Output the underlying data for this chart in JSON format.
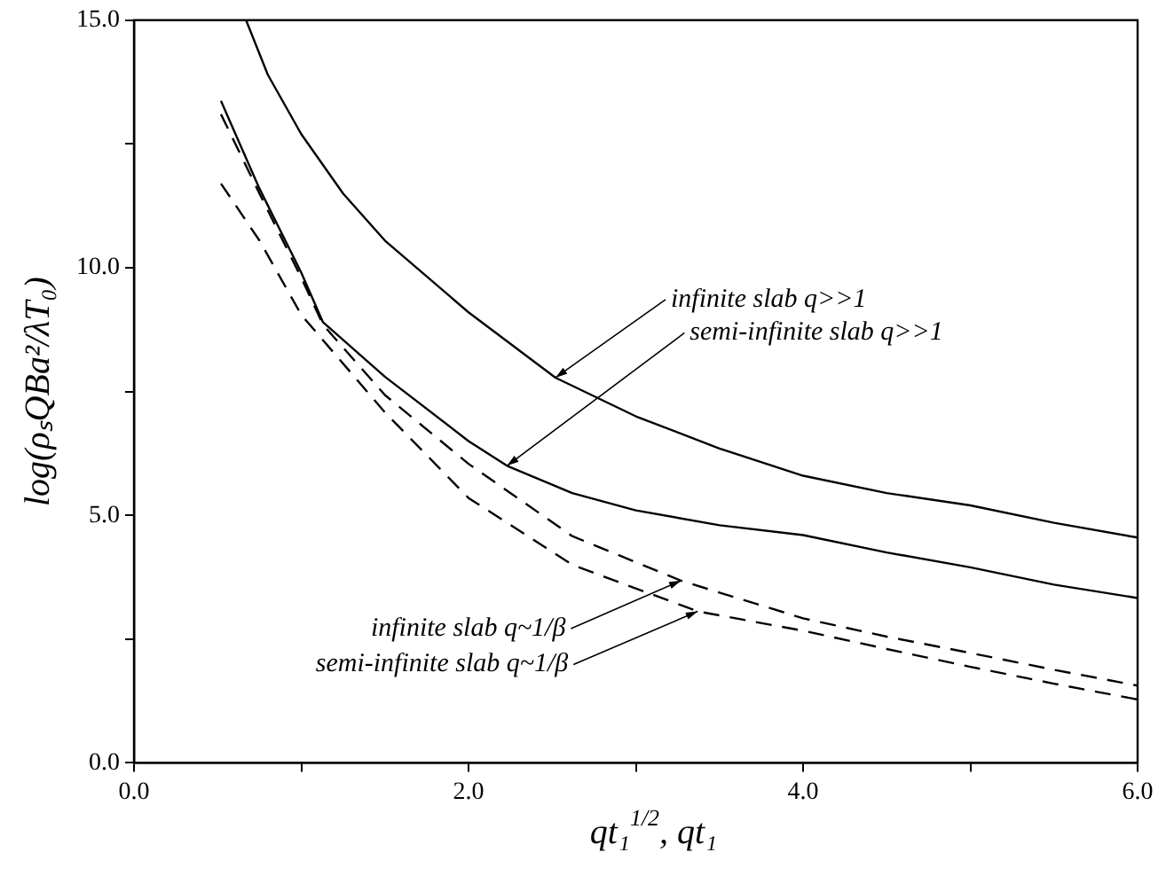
{
  "chart_data": {
    "type": "line",
    "xlabel": "qt₁$^{1/2}$, qt₁",
    "ylabel": "log(ρₛQBa²/λT₀)",
    "xlim": [
      0,
      6
    ],
    "ylim": [
      0,
      15
    ],
    "xticks": [
      {
        "value": 0,
        "label": "0.0"
      },
      {
        "value": 1,
        "label": null
      },
      {
        "value": 2,
        "label": "2.0"
      },
      {
        "value": 3,
        "label": null
      },
      {
        "value": 4,
        "label": "4.0"
      },
      {
        "value": 5,
        "label": null
      },
      {
        "value": 6,
        "label": "6.0"
      }
    ],
    "yticks": [
      {
        "value": 0,
        "label": "0.0"
      },
      {
        "value": 2.5,
        "label": null
      },
      {
        "value": 5,
        "label": "5.0"
      },
      {
        "value": 7.5,
        "label": null
      },
      {
        "value": 10,
        "label": "10.0"
      },
      {
        "value": 12.5,
        "label": null
      },
      {
        "value": 15,
        "label": "15.0"
      }
    ],
    "grid": false,
    "legend": false,
    "marker": "none",
    "series": [
      {
        "color": "#000000",
        "line_style": "solid",
        "x": [
          0.67,
          0.8,
          1.0,
          1.25,
          1.5,
          2.0,
          2.52,
          3.0,
          3.5,
          4.0,
          4.5,
          5.0,
          5.5,
          6.0
        ],
        "values": [
          15,
          13.9,
          12.7,
          11.5,
          10.55,
          9.1,
          7.78,
          7.0,
          6.35,
          5.8,
          5.45,
          5.2,
          4.85,
          4.55
        ]
      },
      {
        "color": "#000000",
        "line_style": "solid",
        "x": [
          0.52,
          0.75,
          1.0,
          1.13,
          1.5,
          2.0,
          2.23,
          2.62,
          3.0,
          3.5,
          4.0,
          4.5,
          5.0,
          5.5,
          6.0
        ],
        "values": [
          13.37,
          11.6,
          9.9,
          8.9,
          7.8,
          6.5,
          6.0,
          5.45,
          5.1,
          4.8,
          4.6,
          4.25,
          3.95,
          3.6,
          3.33
        ]
      },
      {
        "color": "#000000",
        "line_style": "dashed",
        "x": [
          0.52,
          0.75,
          1.0,
          1.13,
          1.5,
          2.0,
          2.62,
          3.27,
          4.0,
          4.5,
          5.0,
          5.5,
          6.0
        ],
        "values": [
          13.1,
          11.5,
          9.8,
          8.85,
          7.43,
          6.04,
          4.58,
          3.68,
          2.92,
          2.55,
          2.22,
          1.88,
          1.56
        ]
      },
      {
        "color": "#000000",
        "line_style": "dashed",
        "x": [
          0.52,
          0.75,
          1.0,
          1.5,
          2.0,
          2.62,
          3.37,
          4.0,
          4.5,
          5.0,
          5.5,
          6.0
        ],
        "values": [
          11.7,
          10.55,
          9.05,
          7.08,
          5.35,
          4.0,
          3.06,
          2.67,
          2.3,
          1.94,
          1.6,
          1.28
        ]
      }
    ],
    "annotations": [
      {
        "text": "infinite slab q>>1",
        "x": 2.52,
        "y": 7.78
      },
      {
        "text": "semi-infinite slab q>>1",
        "x": 2.23,
        "y": 6.0
      },
      {
        "text": "infinite slab q~1/β",
        "x": 3.27,
        "y": 3.68
      },
      {
        "text": "semi-infinite slab q~1/β",
        "x": 3.37,
        "y": 3.06
      }
    ]
  }
}
